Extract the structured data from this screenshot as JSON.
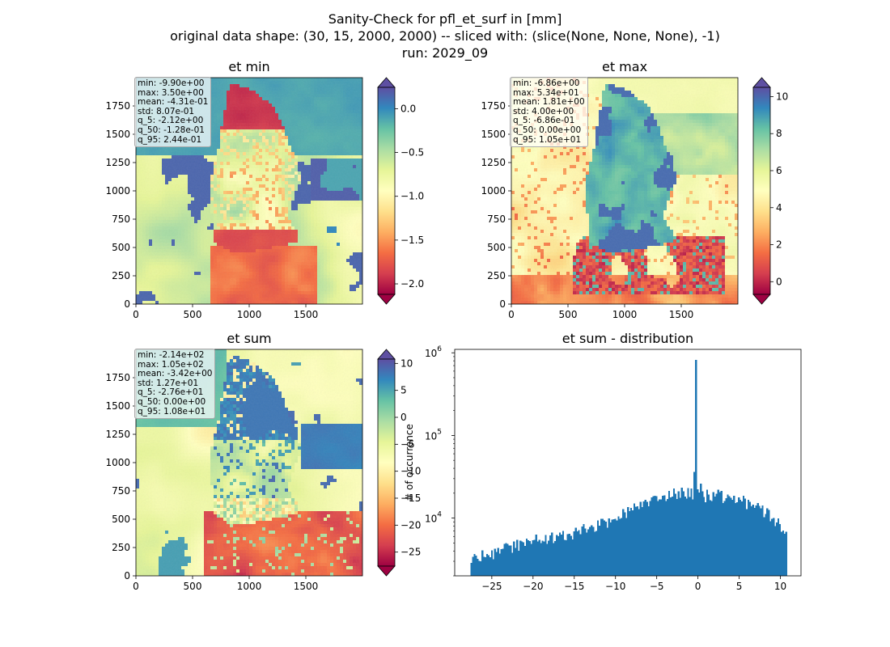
{
  "suptitle": {
    "line1": "Sanity-Check for pfl_et_surf in [mm]",
    "line2": "original data shape: (30, 15, 2000, 2000) -- sliced with: (slice(None, None, None), -1)",
    "line3": "run: 2029_09"
  },
  "chart_data": [
    {
      "type": "heatmap",
      "title": "et min",
      "xlim": [
        0,
        2000
      ],
      "ylim": [
        0,
        2000
      ],
      "xticks": [
        "0",
        "500",
        "1000",
        "1500"
      ],
      "yticks": [
        "0",
        "250",
        "500",
        "750",
        "1000",
        "1250",
        "1500",
        "1750"
      ],
      "colormap": "Spectral",
      "colorbar": {
        "range": [
          -2.12,
          0.244
        ],
        "ticks": [
          "0.0",
          "−0.5",
          "−1.0",
          "−1.5",
          "−2.0"
        ],
        "extend": "both"
      },
      "stats": [
        "min: -9.90e+00",
        "max: 3.50e+00",
        "mean: -4.31e-01",
        "std: 8.07e-01",
        "q_5: -2.12e+00",
        "q_50: -1.28e-01",
        "q_95: 2.44e-01"
      ]
    },
    {
      "type": "heatmap",
      "title": "et max",
      "xlim": [
        0,
        2000
      ],
      "ylim": [
        0,
        2000
      ],
      "xticks": [
        "0",
        "500",
        "1000",
        "1500"
      ],
      "yticks": [
        "0",
        "250",
        "500",
        "750",
        "1000",
        "1250",
        "1500",
        "1750"
      ],
      "colormap": "Spectral",
      "colorbar": {
        "range": [
          -0.686,
          10.5
        ],
        "ticks": [
          "10",
          "8",
          "6",
          "4",
          "2",
          "0"
        ],
        "extend": "both"
      },
      "stats": [
        "min: -6.86e+00",
        "max: 5.34e+01",
        "mean: 1.81e+00",
        "std: 4.00e+00",
        "q_5: -6.86e-01",
        "q_50: 0.00e+00",
        "q_95: 1.05e+01"
      ]
    },
    {
      "type": "heatmap",
      "title": "et sum",
      "xlim": [
        0,
        2000
      ],
      "ylim": [
        0,
        2000
      ],
      "xticks": [
        "0",
        "500",
        "1000",
        "1500"
      ],
      "yticks": [
        "0",
        "250",
        "500",
        "750",
        "1000",
        "1250",
        "1500",
        "1750"
      ],
      "colormap": "Spectral",
      "colorbar": {
        "range": [
          -27.6,
          10.8
        ],
        "ticks": [
          "10",
          "5",
          "0",
          "−5",
          "−10",
          "−15",
          "−20",
          "−25"
        ],
        "extend": "both"
      },
      "stats": [
        "min: -2.14e+02",
        "max: 1.05e+02",
        "mean: -3.42e+00",
        "std: 1.27e+01",
        "q_5: -2.76e+01",
        "q_50: 0.00e+00",
        "q_95: 1.08e+01"
      ]
    },
    {
      "type": "bar",
      "title": "et sum - distribution",
      "ylabel": "# of occurrence",
      "xlabel": "",
      "yscale": "log",
      "xlim": [
        -29.5,
        12.5
      ],
      "ylim": [
        2000,
        1100000
      ],
      "xticks": [
        "−25",
        "−20",
        "−15",
        "−10",
        "−5",
        "0",
        "5",
        "10"
      ],
      "color": "#1f77b4",
      "hist_profile": [
        [
          -27.6,
          3300
        ],
        [
          -25,
          3800
        ],
        [
          -22.5,
          4600
        ],
        [
          -20,
          5300
        ],
        [
          -17.5,
          5900
        ],
        [
          -15,
          6700
        ],
        [
          -12.5,
          7800
        ],
        [
          -10,
          10000
        ],
        [
          -7.5,
          13500
        ],
        [
          -5,
          17000
        ],
        [
          -3,
          19500
        ],
        [
          -1,
          20000
        ],
        [
          0,
          19000
        ],
        [
          2.5,
          19000
        ],
        [
          5,
          16500
        ],
        [
          7,
          14000
        ],
        [
          9,
          10500
        ],
        [
          10.8,
          7000
        ]
      ],
      "spikes": [
        {
          "x": -27.6,
          "count": 5000
        },
        {
          "x": -0.15,
          "count": 820000
        },
        {
          "x": -0.5,
          "count": 36000
        },
        {
          "x": 0.25,
          "count": 26000
        }
      ]
    }
  ]
}
